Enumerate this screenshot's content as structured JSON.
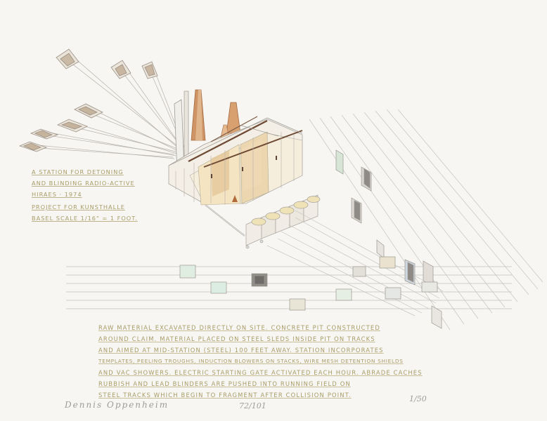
{
  "title_block": {
    "lines": [
      "A STATION FOR DETONING",
      "AND BLINDING RADIO-ACTIVE",
      "HIRAES · 1974",
      "PROJECT FOR KUNSTHALLE",
      "BASEL   SCALE 1/16\" = 1 FOOT."
    ]
  },
  "description": {
    "lines": [
      "RAW MATERIAL EXCAVATED DIRECTLY ON SITE. CONCRETE PIT CONSTRUCTED",
      "AROUND CLAIM. MATERIAL PLACED ON STEEL SLEDS INSIDE PIT ON TRACKS",
      "AND AIMED AT MID-STATION (STEEL) 100 FEET AWAY. STATION INCORPORATES",
      "TEMPLATES, PEELING TROUGHS, INDUCTION BLOWERS ON STACKS, WIRE MESH DETENTION SHIELDS",
      "AND VAC SHOWERS. ELECTRIC STARTING GATE ACTIVATED EACH HOUR. ABRADE CACHES",
      "RUBBISH AND LEAD BLINDERS ARE PUSHED INTO RUNNING FIELD ON",
      "STEEL TRACKS WHICH BEGIN TO FRAGMENT AFTER COLLISION POINT."
    ]
  },
  "signature": {
    "artist": "Dennis Oppenheim",
    "number": "72/101",
    "edition": "1/50"
  },
  "colors": {
    "paper": "#f7f6f3",
    "pencil": "#a89c66",
    "line": "#c3c0bb",
    "ochre": "#c98a52",
    "rust": "#b06a3c",
    "beige": "#efe2c4",
    "pale_green": "#cfe1c8"
  }
}
